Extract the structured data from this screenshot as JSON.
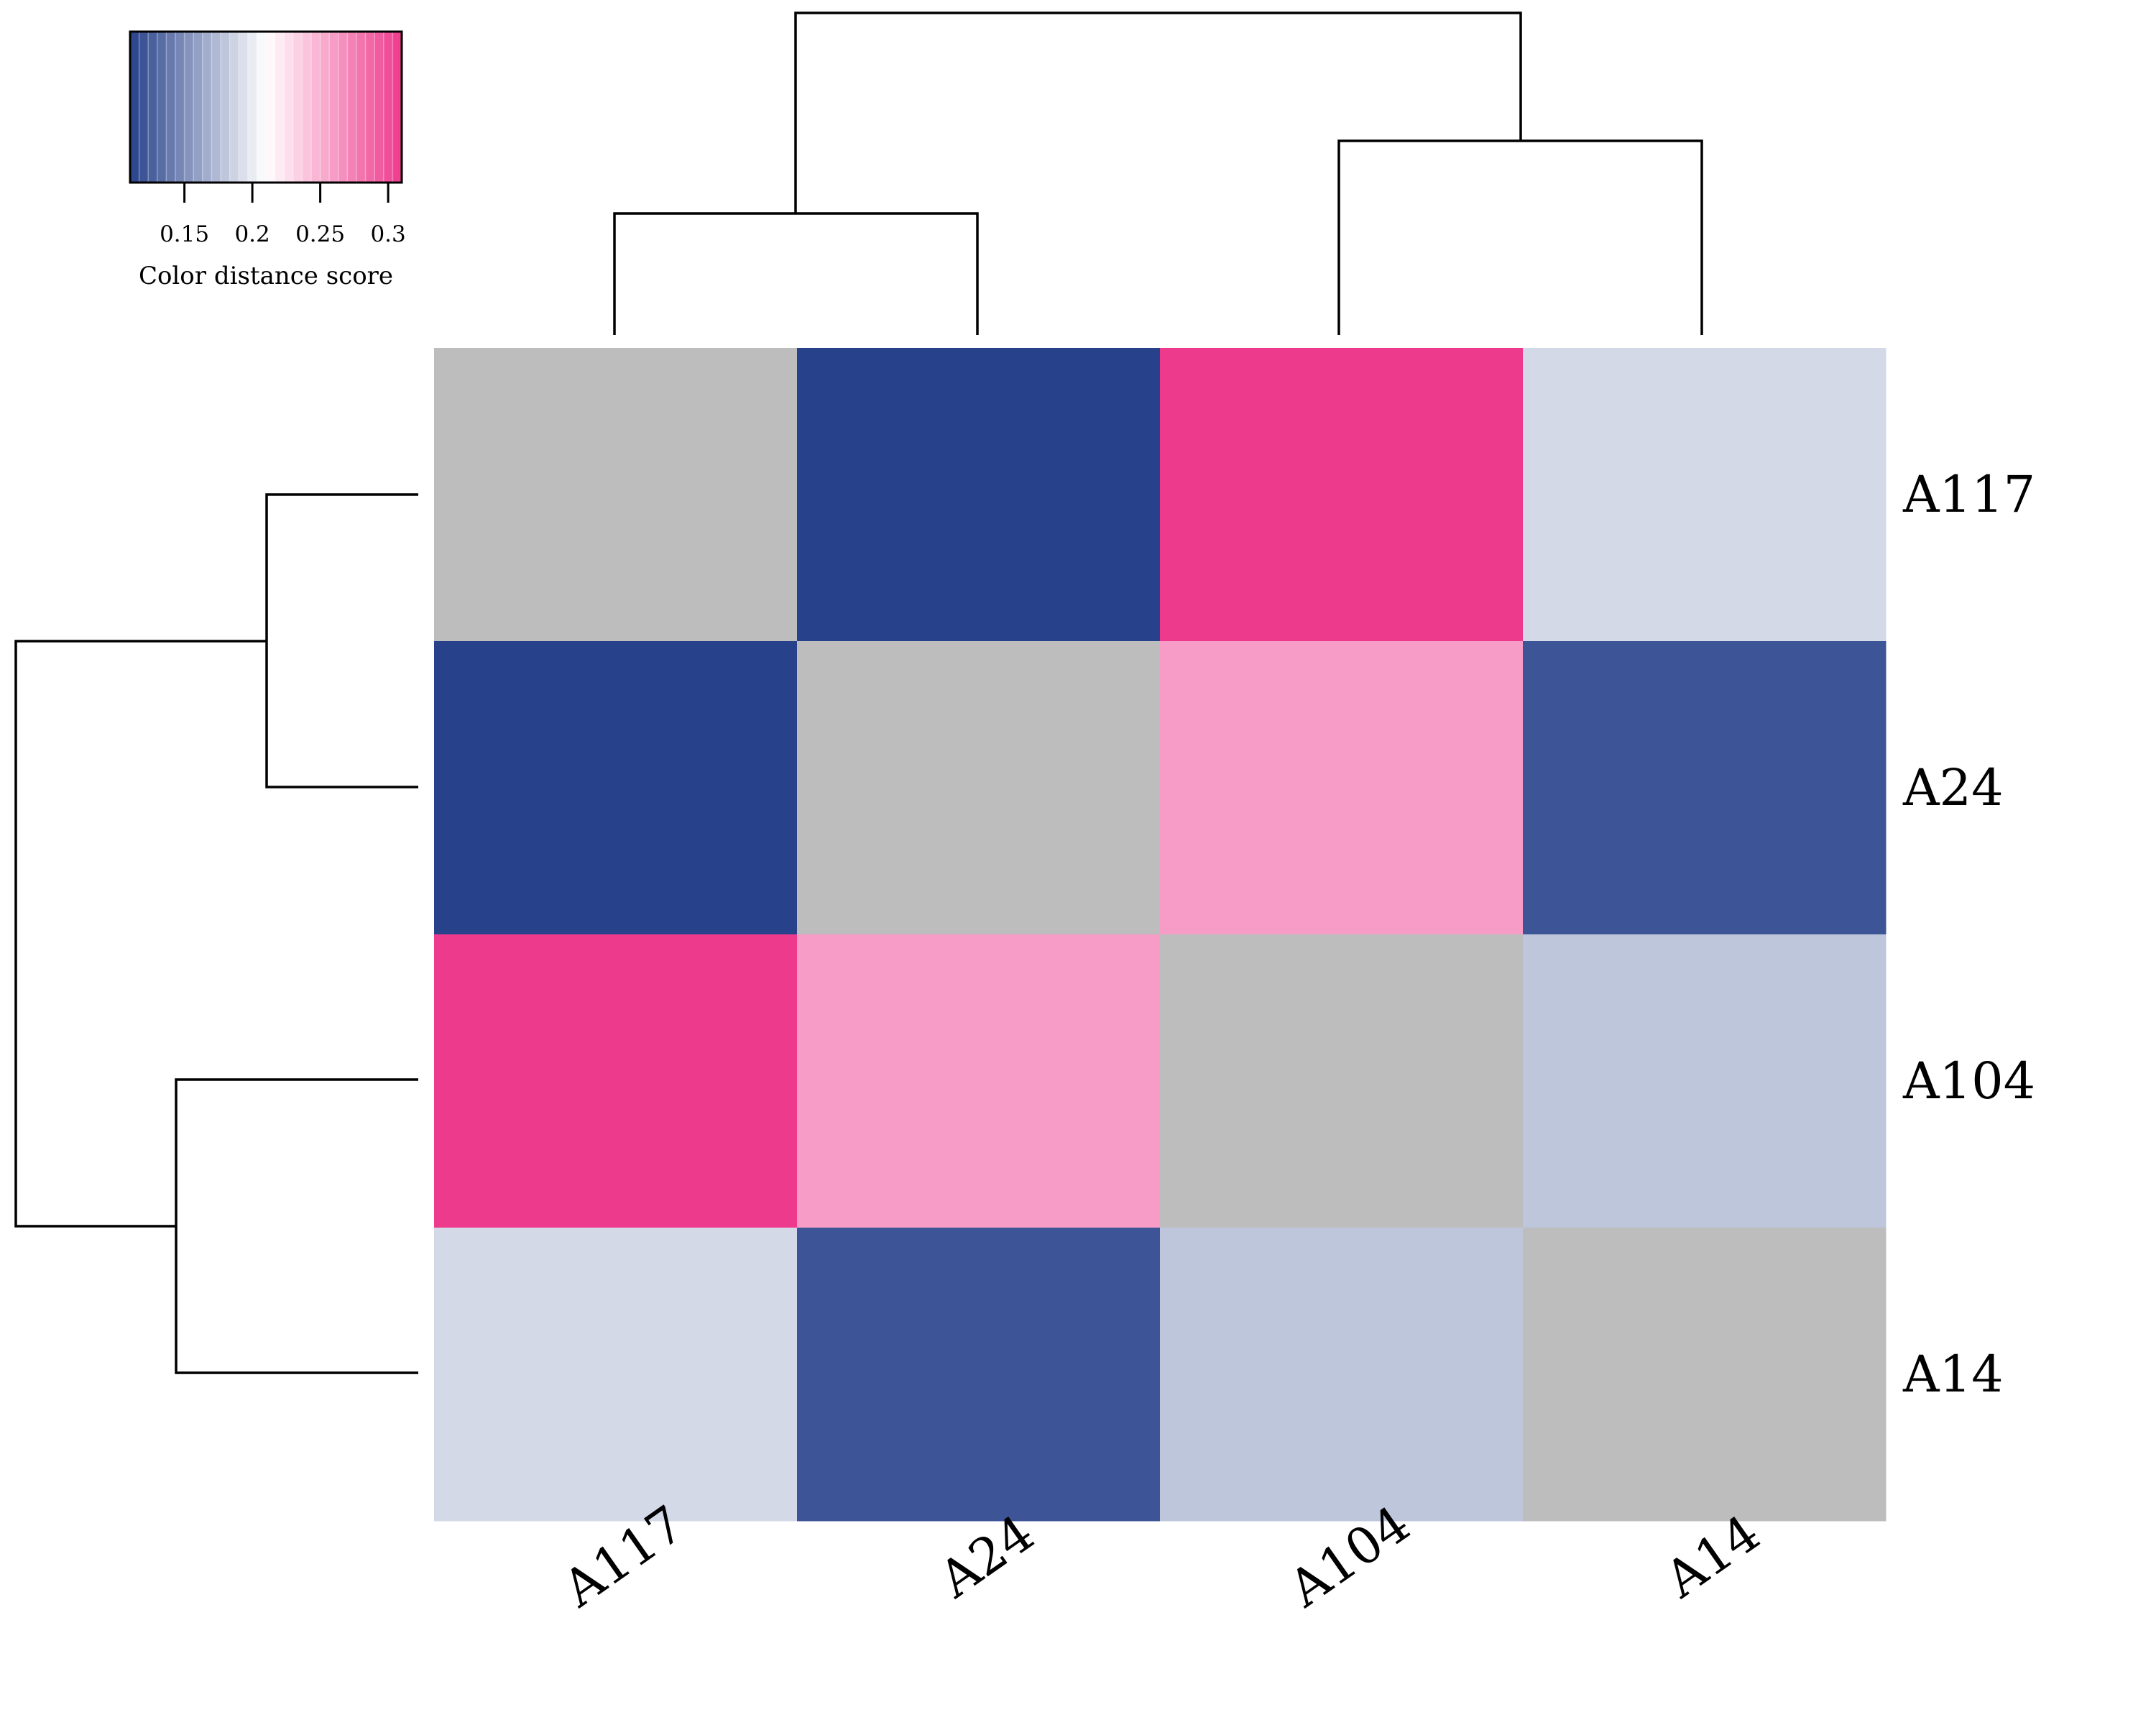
{
  "chart_data": {
    "type": "heatmap",
    "rows": [
      "A117",
      "A24",
      "A104",
      "A14"
    ],
    "columns": [
      "A117",
      "A24",
      "A104",
      "A14"
    ],
    "values": [
      [
        null,
        0.11,
        0.31,
        0.19
      ],
      [
        0.11,
        null,
        0.26,
        0.12
      ],
      [
        0.31,
        0.26,
        null,
        0.18
      ],
      [
        0.19,
        0.12,
        0.18,
        null
      ]
    ],
    "diagonal_color": "#bdbdbd",
    "colorscale": {
      "min": 0.11,
      "max": 0.31,
      "low_color": "#27418a",
      "mid_color": "#ffffff",
      "high_color": "#ee3a8c",
      "ticks": [
        "0.15",
        "0.2",
        "0.25",
        "0.3"
      ],
      "title": "Color distance score"
    },
    "dendrogram_columns": {
      "merges": [
        [
          "A117",
          "A24"
        ],
        [
          "A104",
          "A14"
        ],
        [
          "A117|A24",
          "A104|A14"
        ]
      ]
    },
    "dendrogram_rows": {
      "merges": [
        [
          "A117",
          "A24"
        ],
        [
          "A104",
          "A14"
        ],
        [
          "A117|A24",
          "A104|A14"
        ]
      ]
    },
    "legend_position": "top-left"
  }
}
